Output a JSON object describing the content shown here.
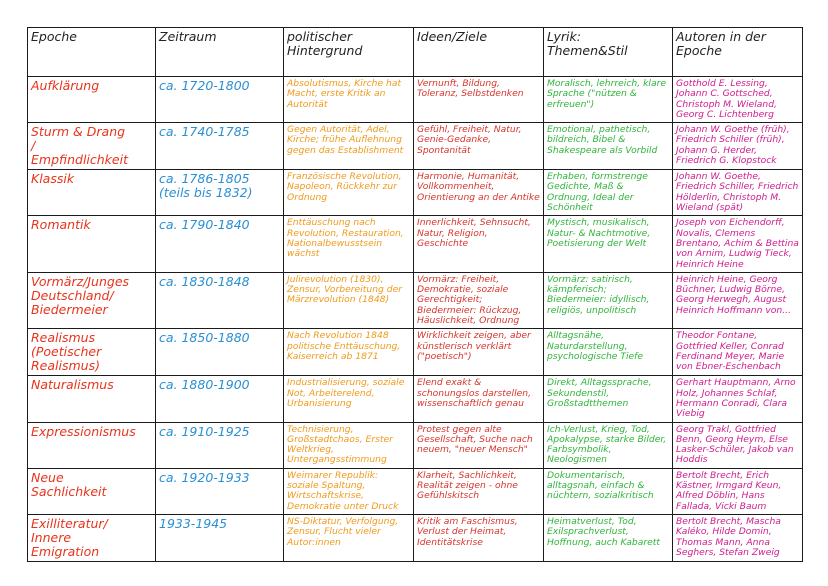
{
  "colors": {
    "epoch": "#e8331c",
    "period": "#2a8fd3",
    "politics": "#f09a1a",
    "ideas": "#d8342c",
    "lyric": "#2fb53a",
    "authors": "#d01b8e"
  },
  "headers": [
    "Epoche",
    "Zeitraum",
    "politischer\nHintergrund",
    "Ideen/Ziele",
    "Lyrik:\nThemen&Stil",
    "Autoren in der\nEpoche"
  ],
  "rows": [
    {
      "epoch": "Aufklärung",
      "period": "ca. 1720-1800",
      "politics": "Absolutismus, Kirche hat Macht, erste Kritik an Autorität",
      "ideas": "Vernunft, Bildung, Toleranz, Selbstdenken",
      "lyric": "Moralisch, lehrreich, klare Sprache (\"nützen & erfreuen\")",
      "authors": "Gotthold E. Lessing, Johann C. Gottsched, Christoph M. Wieland, Georg C. Lichtenberg"
    },
    {
      "epoch": "Sturm & Drang\n/\nEmpfindlichkeit",
      "period": "ca. 1740-1785",
      "politics": "Gegen Autorität, Adel, Kirche; frühe Auflehnung gegen das Establishment",
      "ideas": "Gefühl, Freiheit, Natur, Genie-Gedanke, Spontanität",
      "lyric": "Emotional, pathetisch, bildreich, Bibel & Shakespeare als Vorbild",
      "authors": "Johann W. Goethe (früh), Friedrich Schiller (früh), Johann G. Herder, Friedrich G. Klopstock"
    },
    {
      "epoch": "Klassik",
      "period": "ca. 1786-1805\n(teils bis 1832)",
      "politics": "Französische Revolution, Napoleon, Rückkehr zur Ordnung",
      "ideas": "Harmonie, Humanität, Vollkommenheit, Orientierung an der Antike",
      "lyric": "Erhaben, formstrenge Gedichte, Maß & Ordnung, Ideal der Schönheit",
      "authors": "Johann W. Goethe, Friedrich Schiller, Friedrich Hölderlin, Christoph M. Wieland (spät)"
    },
    {
      "epoch": "Romantik",
      "period": "ca. 1790-1840",
      "politics": "Enttäuschung nach Revolution, Restauration, Nationalbewusstsein wächst",
      "ideas": "Innerlichkeit, Sehnsucht, Natur, Religion, Geschichte",
      "lyric": "Mystisch, musikalisch, Natur- & Nachtmotive, Poetisierung der Welt",
      "authors": "Joseph von Eichendorff, Novalis, Clemens Brentano, Achim & Bettina von Arnim, Ludwig Tieck, Heinrich Heine"
    },
    {
      "epoch": "Vormärz/Junges\nDeutschland/\nBiedermeier",
      "period": "ca. 1830-1848",
      "politics": "Julirevolution (1830), Zensur, Vorbereitung der Märzrevolution (1848)",
      "ideas": "Vormärz: Freiheit, Demokratie, soziale Gerechtigkeit; Biedermeier: Rückzug, Häuslichkeit, Ordnung",
      "lyric": "Vormärz: satirisch, kämpferisch; Biedermeier: idyllisch, religiös, unpolitisch",
      "authors": "Heinrich Heine, Georg Büchner, Ludwig Börne, Georg Herwegh, August Heinrich Hoffmann von..."
    },
    {
      "epoch": "Realismus\n(Poetischer\nRealismus)",
      "period": "ca. 1850-1880",
      "politics": "Nach Revolution 1848 politische Enttäuschung, Kaiserreich ab 1871",
      "ideas": "Wirklichkeit zeigen, aber künstlerisch verklärt (\"poetisch\")",
      "lyric": "Alltagsnähe, Naturdarstellung, psychologische Tiefe",
      "authors": "Theodor Fontane, Gottfried Keller, Conrad Ferdinand Meyer, Marie von Ebner-Eschenbach"
    },
    {
      "epoch": "Naturalismus",
      "period": "ca. 1880-1900",
      "politics": "Industrialisierung, soziale Not, Arbeiterelend, Urbanisierung",
      "ideas": "Elend exakt & schonungslos darstellen, wissenschaftlich genau",
      "lyric": "Direkt, Alltagssprache, Sekundenstil, Großstadtthemen",
      "authors": "Gerhart Hauptmann, Arno Holz, Johannes Schlaf, Hermann Conradi, Clara Viebig"
    },
    {
      "epoch": "Expressionismus",
      "period": "ca. 1910-1925",
      "politics": "Technisierung, Großstadtchaos, Erster Weltkrieg, Untergangsstimmung",
      "ideas": "Protest gegen alte Gesellschaft, Suche nach neuem, \"neuer Mensch\"",
      "lyric": "Ich-Verlust, Krieg, Tod, Apokalypse, starke Bilder, Farbsymbolik, Neologismen",
      "authors": "Georg Trakl, Gottfried Benn, Georg Heym, Else Lasker-Schüler, Jakob van Hoddis"
    },
    {
      "epoch": "Neue\nSachlichkeit",
      "period": "ca. 1920-1933",
      "politics": "Weimarer Republik: soziale Spaltung, Wirtschaftskrise, Demokratie unter Druck",
      "ideas": "Klarheit, Sachlichkeit, Realität zeigen - ohne Gefühlskitsch",
      "lyric": "Dokumentarisch, alltagsnah, einfach & nüchtern, sozialkritisch",
      "authors": "Bertolt Brecht, Erich Kästner, Irmgard Keun, Alfred Döblin, Hans Fallada, Vicki Baum"
    },
    {
      "epoch": "Exilliteratur/\nInnere\nEmigration",
      "period": "1933-1945",
      "politics": "NS-Diktatur, Verfolgung, Zensur, Flucht vieler Autor:innen",
      "ideas": "Kritik am Faschismus, Verlust der Heimat, Identitätskrise",
      "lyric": "Heimatverlust, Tod, Exilsprachverlust, Hoffnung, auch Kabarett",
      "authors": "Bertolt Brecht, Mascha Kaléko, Hilde Domin, Thomas Mann, Anna Seghers, Stefan Zweig"
    }
  ]
}
